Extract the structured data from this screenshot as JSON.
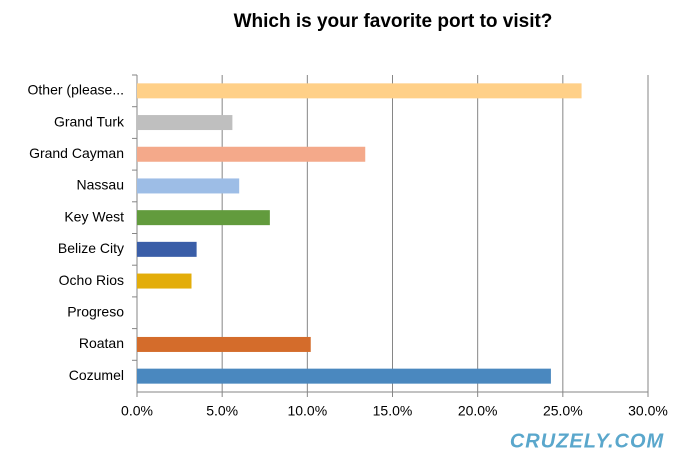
{
  "chart_data": {
    "type": "hbar",
    "title": "Which is your favorite port to visit?",
    "categories": [
      "Other (please...",
      "Grand Turk",
      "Grand Cayman",
      "Nassau",
      "Key West",
      "Belize City",
      "Ocho Rios",
      "Progreso",
      "Roatan",
      "Cozumel"
    ],
    "values": [
      26.1,
      5.6,
      13.4,
      6.0,
      7.8,
      3.5,
      3.2,
      0,
      10.2,
      24.3
    ],
    "colors": [
      "#ffd088",
      "#bfbfbf",
      "#f4a98a",
      "#9dbde6",
      "#629b3d",
      "#3a5ea8",
      "#e3ad0a",
      "#8064a2",
      "#d46c2b",
      "#4a88bf"
    ],
    "xlim": [
      0,
      30
    ],
    "xticks": [
      {
        "value": 0,
        "label": "0.0%"
      },
      {
        "value": 5,
        "label": "5.0%"
      },
      {
        "value": 10,
        "label": "10.0%"
      },
      {
        "value": 15,
        "label": "15.0%"
      },
      {
        "value": 20,
        "label": "20.0%"
      },
      {
        "value": 25,
        "label": "25.0%"
      },
      {
        "value": 30,
        "label": "30.0%"
      }
    ],
    "grid": true,
    "watermark": "CRUZELY.COM"
  }
}
